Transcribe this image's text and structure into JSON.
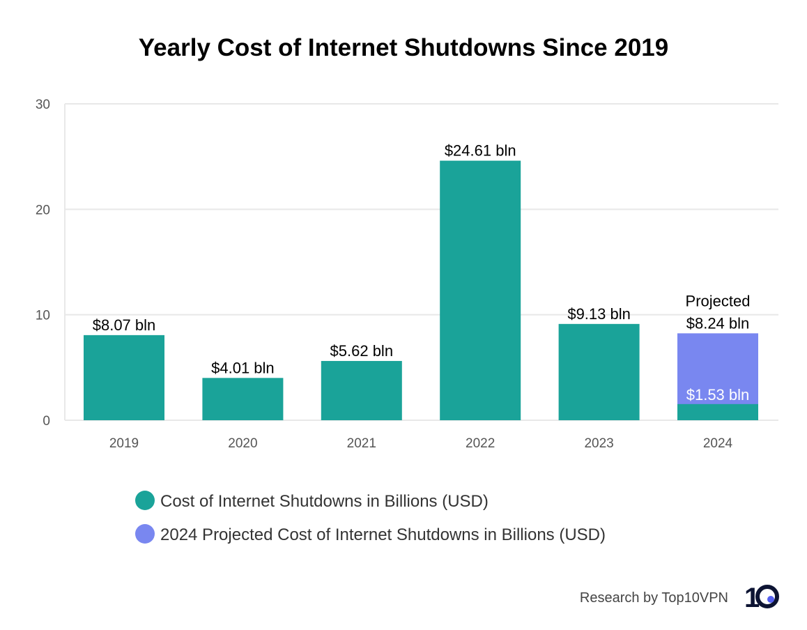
{
  "chart_data": {
    "type": "bar",
    "title": "Yearly Cost of Internet Shutdowns Since 2019",
    "categories": [
      "2019",
      "2020",
      "2021",
      "2022",
      "2023",
      "2024"
    ],
    "series": [
      {
        "name": "Cost of Internet Shutdowns in Billions (USD)",
        "color": "#1aa399",
        "values": [
          8.07,
          4.01,
          5.62,
          24.61,
          9.13,
          1.53
        ]
      },
      {
        "name": "2024 Projected Cost of Internet Shutdowns in Billions (USD)",
        "color": "#7987f0",
        "values": [
          null,
          null,
          null,
          null,
          null,
          8.24
        ]
      }
    ],
    "data_labels": [
      "$8.07 bln",
      "$4.01 bln",
      "$5.62 bln",
      "$24.61 bln",
      "$9.13 bln",
      "$8.24 bln"
    ],
    "projected_prefix": "Projected",
    "inner_label_2024": "$1.53 bln",
    "yticks": [
      0,
      10,
      20,
      30
    ],
    "ylim": [
      0,
      30
    ],
    "grid": true,
    "legend_position": "bottom",
    "xlabel": "",
    "ylabel": ""
  },
  "credit": "Research by Top10VPN",
  "logo_text": "10",
  "logo_colors": {
    "text": "#0d1433",
    "dot": "#5560f0"
  }
}
